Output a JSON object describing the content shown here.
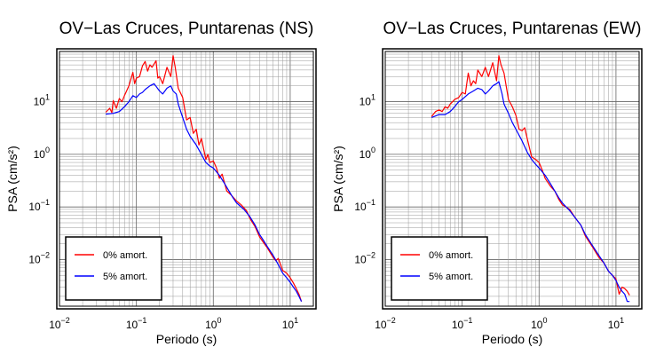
{
  "chart_data": [
    {
      "type": "line",
      "title": "OV−Las Cruces, Puntarenas (NS)",
      "xlabel": "Periodo (s)",
      "ylabel": "PSA (cm/s²)",
      "x_scale": "log",
      "y_scale": "log",
      "xlim": [
        0.01,
        20
      ],
      "ylim": [
        0.0013,
        90
      ],
      "grid": true,
      "x_ticks": [
        {
          "value": 0.01,
          "mantissa": "10",
          "exp": "−2"
        },
        {
          "value": 0.1,
          "mantissa": "10",
          "exp": "−1"
        },
        {
          "value": 1,
          "mantissa": "10",
          "exp": "0"
        },
        {
          "value": 10,
          "mantissa": "10",
          "exp": "1"
        }
      ],
      "y_ticks": [
        {
          "value": 0.01,
          "mantissa": "10",
          "exp": "−2"
        },
        {
          "value": 0.1,
          "mantissa": "10",
          "exp": "−1"
        },
        {
          "value": 1,
          "mantissa": "10",
          "exp": "0"
        },
        {
          "value": 10,
          "mantissa": "10",
          "exp": "1"
        }
      ],
      "legend": {
        "placement": "bottom-left"
      },
      "series": [
        {
          "name": "0% amort.",
          "color": "#ff0000",
          "points": [
            [
              0.04,
              6.3
            ],
            [
              0.045,
              7.5
            ],
            [
              0.048,
              6.2
            ],
            [
              0.05,
              10.5
            ],
            [
              0.055,
              7.5
            ],
            [
              0.06,
              11.5
            ],
            [
              0.065,
              10
            ],
            [
              0.07,
              13
            ],
            [
              0.08,
              20
            ],
            [
              0.09,
              36
            ],
            [
              0.095,
              22
            ],
            [
              0.1,
              28
            ],
            [
              0.11,
              30
            ],
            [
              0.12,
              48
            ],
            [
              0.13,
              58
            ],
            [
              0.14,
              38
            ],
            [
              0.15,
              50
            ],
            [
              0.16,
              45
            ],
            [
              0.18,
              60
            ],
            [
              0.19,
              28
            ],
            [
              0.2,
              30
            ],
            [
              0.22,
              22
            ],
            [
              0.25,
              45
            ],
            [
              0.28,
              30
            ],
            [
              0.3,
              75
            ],
            [
              0.32,
              45
            ],
            [
              0.35,
              18
            ],
            [
              0.4,
              12
            ],
            [
              0.45,
              4.5
            ],
            [
              0.5,
              5
            ],
            [
              0.55,
              2.5
            ],
            [
              0.6,
              3
            ],
            [
              0.65,
              1.5
            ],
            [
              0.7,
              2
            ],
            [
              0.8,
              0.8
            ],
            [
              0.85,
              1.0
            ],
            [
              0.9,
              0.7
            ],
            [
              1.0,
              0.75
            ],
            [
              1.1,
              0.55
            ],
            [
              1.2,
              0.35
            ],
            [
              1.3,
              0.42
            ],
            [
              1.5,
              0.2
            ],
            [
              1.7,
              0.17
            ],
            [
              2.0,
              0.13
            ],
            [
              2.3,
              0.11
            ],
            [
              2.7,
              0.085
            ],
            [
              3.0,
              0.06
            ],
            [
              3.5,
              0.042
            ],
            [
              4.0,
              0.027
            ],
            [
              4.5,
              0.021
            ],
            [
              5.0,
              0.017
            ],
            [
              6.0,
              0.011
            ],
            [
              6.5,
              0.0095
            ],
            [
              7.0,
              0.0105
            ],
            [
              8.0,
              0.0062
            ],
            [
              9.0,
              0.0055
            ],
            [
              10.0,
              0.0045
            ],
            [
              11.0,
              0.0036
            ],
            [
              12.0,
              0.0028
            ],
            [
              13.0,
              0.0022
            ],
            [
              14.0,
              0.0016
            ]
          ]
        },
        {
          "name": "5% amort.",
          "color": "#0000ff",
          "points": [
            [
              0.04,
              5.8
            ],
            [
              0.05,
              6.0
            ],
            [
              0.06,
              6.5
            ],
            [
              0.07,
              8
            ],
            [
              0.08,
              10
            ],
            [
              0.09,
              13
            ],
            [
              0.1,
              12
            ],
            [
              0.11,
              14
            ],
            [
              0.12,
              15
            ],
            [
              0.13,
              17
            ],
            [
              0.15,
              20
            ],
            [
              0.17,
              22
            ],
            [
              0.2,
              16
            ],
            [
              0.22,
              14
            ],
            [
              0.25,
              18
            ],
            [
              0.28,
              20
            ],
            [
              0.3,
              16
            ],
            [
              0.33,
              14
            ],
            [
              0.35,
              9
            ],
            [
              0.4,
              5
            ],
            [
              0.45,
              3
            ],
            [
              0.5,
              2.2
            ],
            [
              0.6,
              1.5
            ],
            [
              0.7,
              1.0
            ],
            [
              0.8,
              0.7
            ],
            [
              0.9,
              0.6
            ],
            [
              1.0,
              0.55
            ],
            [
              1.2,
              0.4
            ],
            [
              1.4,
              0.28
            ],
            [
              1.6,
              0.2
            ],
            [
              1.8,
              0.15
            ],
            [
              2.0,
              0.12
            ],
            [
              2.5,
              0.09
            ],
            [
              3.0,
              0.065
            ],
            [
              3.5,
              0.045
            ],
            [
              4.0,
              0.03
            ],
            [
              4.5,
              0.023
            ],
            [
              5.0,
              0.018
            ],
            [
              6.0,
              0.012
            ],
            [
              7.0,
              0.008
            ],
            [
              8.0,
              0.0055
            ],
            [
              9.0,
              0.0045
            ],
            [
              10.0,
              0.0037
            ],
            [
              11.0,
              0.003
            ],
            [
              12.0,
              0.0025
            ],
            [
              13.0,
              0.002
            ],
            [
              14.0,
              0.0016
            ]
          ]
        }
      ]
    },
    {
      "type": "line",
      "title": "OV−Las Cruces, Puntarenas (EW)",
      "xlabel": "Periodo (s)",
      "ylabel": "PSA (cm/s²)",
      "x_scale": "log",
      "y_scale": "log",
      "xlim": [
        0.01,
        20
      ],
      "ylim": [
        0.0013,
        90
      ],
      "grid": true,
      "x_ticks": [
        {
          "value": 0.01,
          "mantissa": "10",
          "exp": "−2"
        },
        {
          "value": 0.1,
          "mantissa": "10",
          "exp": "−1"
        },
        {
          "value": 1,
          "mantissa": "10",
          "exp": "0"
        },
        {
          "value": 10,
          "mantissa": "10",
          "exp": "1"
        }
      ],
      "y_ticks": [
        {
          "value": 0.01,
          "mantissa": "10",
          "exp": "−2"
        },
        {
          "value": 0.1,
          "mantissa": "10",
          "exp": "−1"
        },
        {
          "value": 1,
          "mantissa": "10",
          "exp": "0"
        },
        {
          "value": 10,
          "mantissa": "10",
          "exp": "1"
        }
      ],
      "legend": {
        "placement": "bottom-left"
      },
      "series": [
        {
          "name": "0% amort.",
          "color": "#ff0000",
          "points": [
            [
              0.04,
              5.2
            ],
            [
              0.045,
              6.5
            ],
            [
              0.05,
              7
            ],
            [
              0.055,
              6.5
            ],
            [
              0.06,
              8
            ],
            [
              0.065,
              7.5
            ],
            [
              0.07,
              9
            ],
            [
              0.08,
              11
            ],
            [
              0.09,
              12
            ],
            [
              0.1,
              15
            ],
            [
              0.11,
              14
            ],
            [
              0.12,
              35
            ],
            [
              0.13,
              20
            ],
            [
              0.14,
              25
            ],
            [
              0.15,
              22
            ],
            [
              0.16,
              40
            ],
            [
              0.18,
              30
            ],
            [
              0.2,
              45
            ],
            [
              0.22,
              30
            ],
            [
              0.25,
              55
            ],
            [
              0.28,
              25
            ],
            [
              0.3,
              75
            ],
            [
              0.32,
              50
            ],
            [
              0.35,
              35
            ],
            [
              0.4,
              11
            ],
            [
              0.45,
              8
            ],
            [
              0.5,
              5.5
            ],
            [
              0.55,
              3
            ],
            [
              0.6,
              2.8
            ],
            [
              0.65,
              3.2
            ],
            [
              0.7,
              2
            ],
            [
              0.8,
              0.9
            ],
            [
              0.9,
              0.8
            ],
            [
              1.0,
              0.7
            ],
            [
              1.1,
              0.5
            ],
            [
              1.2,
              0.35
            ],
            [
              1.4,
              0.25
            ],
            [
              1.6,
              0.2
            ],
            [
              1.8,
              0.14
            ],
            [
              2.0,
              0.11
            ],
            [
              2.5,
              0.09
            ],
            [
              3.0,
              0.06
            ],
            [
              3.5,
              0.045
            ],
            [
              4.0,
              0.028
            ],
            [
              5.0,
              0.017
            ],
            [
              6.0,
              0.011
            ],
            [
              7.0,
              0.0085
            ],
            [
              8.0,
              0.006
            ],
            [
              9.0,
              0.005
            ],
            [
              10.0,
              0.0043
            ],
            [
              11.0,
              0.0022
            ],
            [
              12.0,
              0.003
            ],
            [
              13.0,
              0.0028
            ],
            [
              14.0,
              0.0025
            ],
            [
              15.0,
              0.0021
            ]
          ]
        },
        {
          "name": "5% amort.",
          "color": "#0000ff",
          "points": [
            [
              0.04,
              5.0
            ],
            [
              0.05,
              5.7
            ],
            [
              0.06,
              5.7
            ],
            [
              0.07,
              6.5
            ],
            [
              0.08,
              8
            ],
            [
              0.09,
              10
            ],
            [
              0.1,
              11
            ],
            [
              0.12,
              14
            ],
            [
              0.14,
              16
            ],
            [
              0.16,
              18
            ],
            [
              0.18,
              17
            ],
            [
              0.2,
              14
            ],
            [
              0.22,
              16
            ],
            [
              0.25,
              20
            ],
            [
              0.28,
              22
            ],
            [
              0.3,
              24
            ],
            [
              0.33,
              14
            ],
            [
              0.35,
              9
            ],
            [
              0.4,
              6
            ],
            [
              0.45,
              4
            ],
            [
              0.5,
              3
            ],
            [
              0.6,
              1.8
            ],
            [
              0.7,
              1.1
            ],
            [
              0.8,
              0.8
            ],
            [
              0.9,
              0.65
            ],
            [
              1.0,
              0.55
            ],
            [
              1.2,
              0.4
            ],
            [
              1.4,
              0.28
            ],
            [
              1.6,
              0.2
            ],
            [
              1.8,
              0.15
            ],
            [
              2.0,
              0.12
            ],
            [
              2.5,
              0.085
            ],
            [
              3.0,
              0.06
            ],
            [
              3.5,
              0.045
            ],
            [
              4.0,
              0.03
            ],
            [
              5.0,
              0.018
            ],
            [
              6.0,
              0.012
            ],
            [
              7.0,
              0.0085
            ],
            [
              8.0,
              0.006
            ],
            [
              9.0,
              0.005
            ],
            [
              10.0,
              0.004
            ],
            [
              11.0,
              0.003
            ],
            [
              12.0,
              0.0025
            ],
            [
              13.0,
              0.0022
            ],
            [
              14.0,
              0.0016
            ],
            [
              15.0,
              0.0016
            ]
          ]
        }
      ]
    }
  ]
}
